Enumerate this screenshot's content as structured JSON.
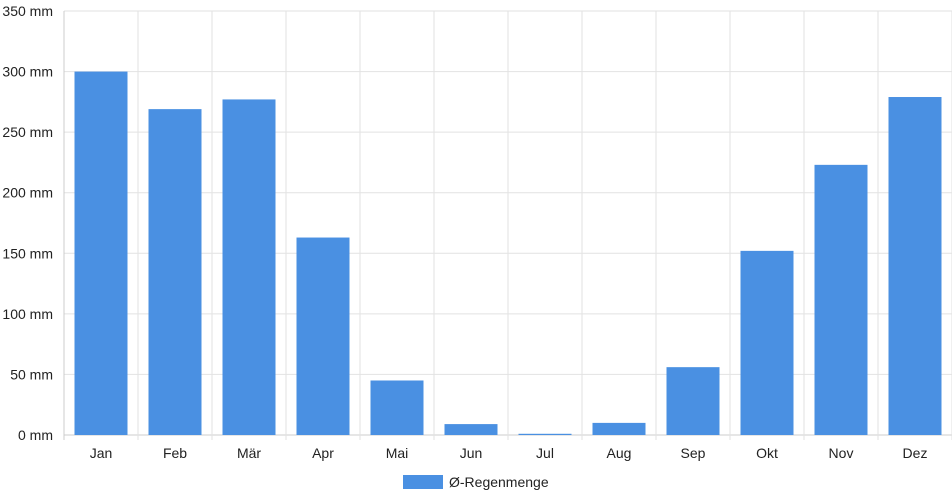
{
  "chart_data": {
    "type": "bar",
    "categories": [
      "Jan",
      "Feb",
      "Mär",
      "Apr",
      "Mai",
      "Jun",
      "Jul",
      "Aug",
      "Sep",
      "Okt",
      "Nov",
      "Dez"
    ],
    "series": [
      {
        "name": "Ø-Regenmenge",
        "values": [
          300,
          269,
          277,
          163,
          45,
          9,
          1,
          10,
          56,
          152,
          223,
          279
        ]
      }
    ],
    "ylim": [
      0,
      350
    ],
    "yticks": [
      0,
      50,
      100,
      150,
      200,
      250,
      300,
      350
    ],
    "y_tick_suffix": " mm",
    "grid": true,
    "legend_position": "bottom-center",
    "colors": {
      "bar": "#4a90e2",
      "grid": "#e2e2e2",
      "axis": "#cccccc",
      "text": "#222222"
    }
  }
}
